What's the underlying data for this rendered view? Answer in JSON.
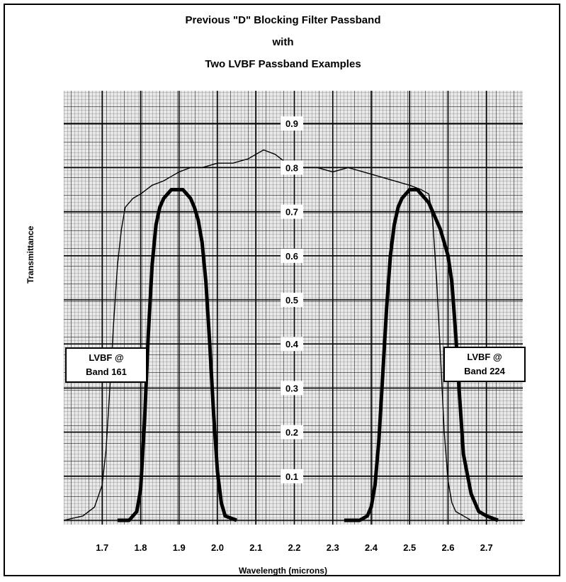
{
  "title_lines": [
    "Previous \"D\" Blocking Filter Passband",
    "with",
    "Two LVBF Passband Examples"
  ],
  "callouts": {
    "left": {
      "line1": "LVBF @",
      "line2": "Band 161"
    },
    "right": {
      "line1": "LVBF @",
      "line2": "Band 224"
    }
  },
  "chart_data": {
    "type": "line",
    "title": "Previous \"D\" Blocking Filter Passband with Two LVBF Passband Examples",
    "xlabel": "Wavelength (microns)",
    "ylabel": "Transmittance",
    "xlim": [
      1.6,
      2.8
    ],
    "ylim": [
      0,
      1.0
    ],
    "x_ticks": [
      "1.7",
      "1.8",
      "1.9",
      "2.0",
      "2.1",
      "2.2",
      "2.3",
      "2.4",
      "2.5",
      "2.6",
      "2.7"
    ],
    "y_ticks": [
      "0.1",
      "0.2",
      "0.3",
      "0.4",
      "0.5",
      "0.6",
      "0.7",
      "0.8",
      "0.9"
    ],
    "grid": true,
    "series": [
      {
        "style": "thin",
        "x": [
          1.6,
          1.65,
          1.68,
          1.7,
          1.71,
          1.72,
          1.73,
          1.74,
          1.75,
          1.76,
          1.78,
          1.8,
          1.83,
          1.86,
          1.88,
          1.9,
          1.93,
          1.96,
          2.0,
          2.04,
          2.08,
          2.1,
          2.12,
          2.15,
          2.18,
          2.22,
          2.26,
          2.3,
          2.34,
          2.38,
          2.42,
          2.46,
          2.5,
          2.53,
          2.55,
          2.56,
          2.57,
          2.58,
          2.59,
          2.6,
          2.61,
          2.62,
          2.64,
          2.66,
          2.7,
          2.75,
          2.8
        ],
        "y": [
          0.0,
          0.01,
          0.03,
          0.08,
          0.16,
          0.3,
          0.45,
          0.58,
          0.66,
          0.71,
          0.73,
          0.74,
          0.76,
          0.77,
          0.78,
          0.79,
          0.8,
          0.8,
          0.81,
          0.81,
          0.82,
          0.83,
          0.84,
          0.83,
          0.81,
          0.8,
          0.8,
          0.79,
          0.8,
          0.79,
          0.78,
          0.77,
          0.76,
          0.75,
          0.74,
          0.68,
          0.55,
          0.38,
          0.2,
          0.09,
          0.04,
          0.02,
          0.01,
          0.0,
          0.0,
          0.0,
          0.0
        ]
      },
      {
        "name": "LVBF @ Band 161",
        "style": "bold",
        "x": [
          1.74,
          1.77,
          1.79,
          1.8,
          1.81,
          1.82,
          1.83,
          1.84,
          1.85,
          1.86,
          1.87,
          1.88,
          1.89,
          1.9,
          1.91,
          1.92,
          1.93,
          1.94,
          1.95,
          1.96,
          1.97,
          1.98,
          1.99,
          2.0,
          2.01,
          2.02,
          2.05
        ],
        "y": [
          0.0,
          0.0,
          0.02,
          0.07,
          0.22,
          0.42,
          0.58,
          0.67,
          0.71,
          0.73,
          0.74,
          0.75,
          0.75,
          0.75,
          0.75,
          0.74,
          0.73,
          0.71,
          0.68,
          0.63,
          0.54,
          0.4,
          0.24,
          0.11,
          0.04,
          0.01,
          0.0
        ]
      },
      {
        "name": "LVBF @ Band 224",
        "style": "bold",
        "x": [
          2.33,
          2.37,
          2.39,
          2.4,
          2.41,
          2.42,
          2.43,
          2.44,
          2.45,
          2.46,
          2.47,
          2.48,
          2.5,
          2.51,
          2.52,
          2.53,
          2.54,
          2.55,
          2.56,
          2.57,
          2.58,
          2.59,
          2.6,
          2.61,
          2.62,
          2.63,
          2.64,
          2.66,
          2.68,
          2.7,
          2.73
        ],
        "y": [
          0.0,
          0.0,
          0.01,
          0.03,
          0.08,
          0.18,
          0.33,
          0.48,
          0.6,
          0.67,
          0.71,
          0.73,
          0.75,
          0.75,
          0.75,
          0.74,
          0.73,
          0.72,
          0.7,
          0.68,
          0.66,
          0.63,
          0.6,
          0.54,
          0.42,
          0.28,
          0.15,
          0.06,
          0.02,
          0.01,
          0.0
        ]
      }
    ]
  }
}
